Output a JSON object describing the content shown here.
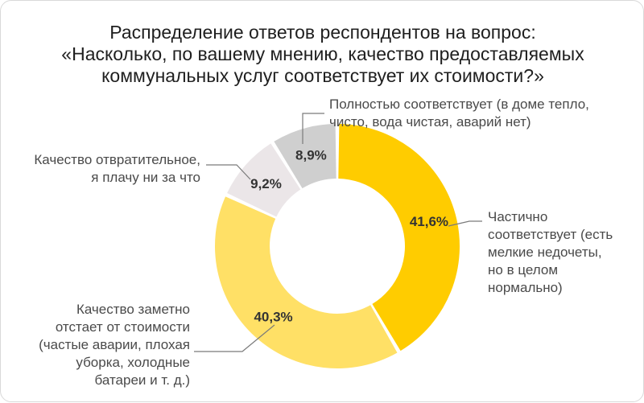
{
  "chart_data": {
    "type": "pie",
    "donut": true,
    "title_lines": [
      "Распределение ответов респондентов на вопрос:",
      "«Насколько, по вашему мнению, качество предоставляемых",
      "коммунальных услуг соответствует их стоимости?»"
    ],
    "slices": [
      {
        "label_lines": [
          "Частично",
          "соответствует (есть",
          "мелкие недочеты,",
          "но в целом",
          "нормально)"
        ],
        "value": 41.6,
        "value_label": "41,6%",
        "color": "#ffcc00"
      },
      {
        "label_lines": [
          "Качество заметно",
          "отстает от стоимости",
          "(частые аварии, плохая",
          "уборка, холодные",
          "батареи и т. д.)"
        ],
        "value": 40.3,
        "value_label": "40,3%",
        "color": "#ffe066"
      },
      {
        "label_lines": [
          "Качество отвратительное,",
          "я плачу ни за что"
        ],
        "value": 9.2,
        "value_label": "9,2%",
        "color": "#ebe6e8"
      },
      {
        "label_lines": [
          "Полностью соответствует (в доме тепло,",
          "чисто, вода чистая, аварий нет)"
        ],
        "value": 8.9,
        "value_label": "8,9%",
        "color": "#cfcfcf"
      }
    ],
    "value_label_color": "#333333",
    "leader_color": "#7a7a7a"
  }
}
